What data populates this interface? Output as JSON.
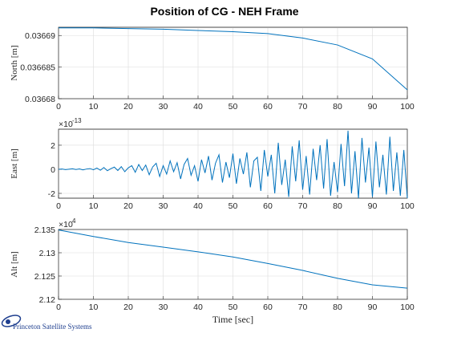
{
  "title": "Position of CG - NEH Frame",
  "logo_text": "Princeton Satellite Systems",
  "chart_data": [
    {
      "type": "line",
      "ylabel": "North [m]",
      "color": "#0072bd",
      "grid": true,
      "xlim": [
        0,
        100
      ],
      "xticks": [
        0,
        10,
        20,
        30,
        40,
        50,
        60,
        70,
        80,
        90,
        100
      ],
      "ylim": [
        0.03668,
        0.0366913
      ],
      "yticks": [
        0.03668,
        0.036685,
        0.03669
      ],
      "x": [
        0,
        10,
        20,
        30,
        40,
        50,
        60,
        70,
        80,
        90,
        100
      ],
      "values": [
        0.0366912,
        0.0366912,
        0.0366911,
        0.036691,
        0.0366908,
        0.0366906,
        0.0366903,
        0.0366896,
        0.0366885,
        0.0366863,
        0.0366814
      ]
    },
    {
      "type": "line",
      "ylabel": "East [m]",
      "color": "#0072bd",
      "grid": true,
      "y_exponent": {
        "base": "×10",
        "power": "-13"
      },
      "xlim": [
        0,
        100
      ],
      "xticks": [
        0,
        10,
        20,
        30,
        40,
        50,
        60,
        70,
        80,
        90,
        100
      ],
      "ylim": [
        -2.4,
        3.33
      ],
      "yticks": [
        -2,
        0,
        2
      ],
      "x": [
        0,
        1,
        2,
        3,
        4,
        5,
        6,
        7,
        8,
        9,
        10,
        11,
        12,
        13,
        14,
        15,
        16,
        17,
        18,
        19,
        20,
        21,
        22,
        23,
        24,
        25,
        26,
        27,
        28,
        29,
        30,
        31,
        32,
        33,
        34,
        35,
        36,
        37,
        38,
        39,
        40,
        41,
        42,
        43,
        44,
        45,
        46,
        47,
        48,
        49,
        50,
        51,
        52,
        53,
        54,
        55,
        56,
        57,
        58,
        59,
        60,
        61,
        62,
        63,
        64,
        65,
        66,
        67,
        68,
        69,
        70,
        71,
        72,
        73,
        74,
        75,
        76,
        77,
        78,
        79,
        80,
        81,
        82,
        83,
        84,
        85,
        86,
        87,
        88,
        89,
        90,
        91,
        92,
        93,
        94,
        95,
        96,
        97,
        98,
        99,
        100
      ],
      "values": [
        0,
        0.02,
        -0.03,
        0.01,
        0.04,
        -0.02,
        0.03,
        -0.05,
        0.02,
        0.06,
        -0.04,
        0.1,
        -0.08,
        0.15,
        -0.12,
        0.05,
        0.18,
        -0.1,
        0.22,
        -0.2,
        0.12,
        0.3,
        -0.25,
        0.4,
        -0.1,
        0.35,
        -0.45,
        0.2,
        0.5,
        -0.6,
        0.3,
        -0.4,
        0.7,
        -0.2,
        0.55,
        -0.8,
        0.4,
        0.9,
        -0.5,
        0.3,
        -1.0,
        0.8,
        -0.3,
        1.1,
        -0.9,
        0.5,
        1.2,
        -1.1,
        0.6,
        -0.7,
        1.3,
        -1.2,
        0.9,
        -0.4,
        1.4,
        -1.5,
        0.7,
        1.0,
        -1.8,
        1.6,
        -0.6,
        1.2,
        -2.0,
        2.2,
        -1.3,
        0.8,
        -2.3,
        1.9,
        -1.0,
        2.4,
        -1.7,
        1.1,
        -2.1,
        1.7,
        -0.9,
        2.0,
        -1.6,
        2.5,
        -2.2,
        0.6,
        -1.9,
        2.1,
        -1.4,
        3.2,
        -2.0,
        1.5,
        -2.4,
        2.6,
        -1.1,
        1.8,
        -2.3,
        2.3,
        -1.5,
        1.2,
        -2.1,
        2.7,
        -1.8,
        1.4,
        -2.2,
        1.6,
        -2.4
      ]
    },
    {
      "type": "line",
      "ylabel": "Alt [m]",
      "xlabel": "Time [sec]",
      "color": "#0072bd",
      "grid": true,
      "y_exponent": {
        "base": "×10",
        "power": "4"
      },
      "xlim": [
        0,
        100
      ],
      "xticks": [
        0,
        10,
        20,
        30,
        40,
        50,
        60,
        70,
        80,
        90,
        100
      ],
      "ylim": [
        2.12,
        2.135
      ],
      "yticks": [
        2.12,
        2.125,
        2.13,
        2.135
      ],
      "x": [
        0,
        10,
        20,
        30,
        40,
        50,
        60,
        70,
        80,
        90,
        100
      ],
      "values": [
        2.1349,
        2.1335,
        2.1322,
        2.1312,
        2.1302,
        2.1291,
        2.1277,
        2.1262,
        2.1245,
        2.1231,
        2.1224
      ]
    }
  ]
}
